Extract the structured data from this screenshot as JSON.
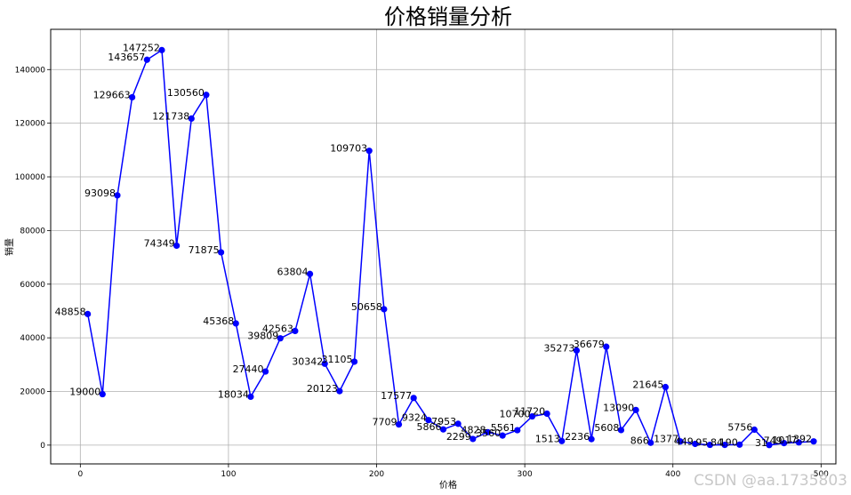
{
  "watermark": "CSDN @aa.1735803",
  "chart_data": {
    "type": "line",
    "title": "价格销量分析",
    "xlabel": "价格",
    "ylabel": "销量",
    "xlim": [
      -20,
      510
    ],
    "ylim": [
      -7000,
      155000
    ],
    "xticks": [
      0,
      100,
      200,
      300,
      400,
      500
    ],
    "yticks": [
      0,
      20000,
      40000,
      60000,
      80000,
      100000,
      120000,
      140000
    ],
    "grid": true,
    "color": "#0000ff",
    "series": [
      {
        "x": [
          5,
          15,
          25,
          35,
          45,
          55,
          65,
          75,
          85,
          95,
          105,
          115,
          125,
          135,
          145,
          155,
          165,
          175,
          185,
          195,
          205,
          215,
          225,
          235,
          245,
          255,
          265,
          275,
          285,
          295,
          305,
          315,
          325,
          335,
          345,
          355,
          365,
          375,
          385,
          395,
          405,
          415,
          425,
          435,
          445,
          455,
          465,
          475,
          485,
          495
        ],
        "values": [
          48858,
          19000,
          93098,
          129663,
          143657,
          147252,
          74349,
          121738,
          130560,
          71875,
          45368,
          18034,
          27440,
          39809,
          42563,
          63804,
          30342,
          20123,
          31105,
          109703,
          50658,
          7709,
          17577,
          9324,
          5866,
          7953,
          2299,
          4828,
          3560,
          5561,
          10700,
          11720,
          1513,
          35273,
          2236,
          36679,
          5608,
          13090,
          866,
          21645,
          1377,
          449,
          95,
          84,
          190,
          5756,
          31,
          749,
          1017,
          1392
        ],
        "labels": [
          "48858",
          "19000",
          "93098",
          "129663",
          "143657",
          "147252",
          "74349",
          "121738",
          "130560",
          "71875",
          "45368",
          "18034",
          "27440",
          "39809",
          "42563",
          "63804",
          "30342",
          "20123",
          "31105",
          "109703",
          "50658",
          "7709",
          "17577",
          "9324",
          "5866",
          "7953",
          "2299",
          "4828",
          "3560",
          "5561",
          "10700",
          "11720",
          "1513",
          "35273",
          "2236",
          "36679",
          "5608",
          "13090",
          "866",
          "21645",
          "1377",
          "449",
          "95",
          "84",
          "190",
          "5756",
          "31",
          "749",
          "1017",
          "1392"
        ]
      }
    ]
  }
}
